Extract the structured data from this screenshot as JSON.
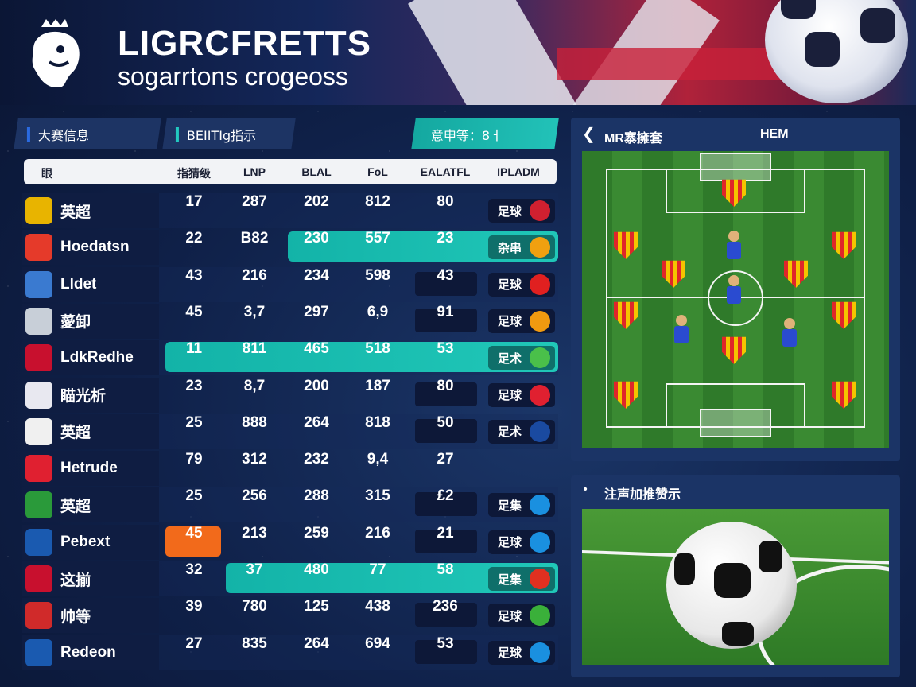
{
  "header": {
    "title": "LIGRCFRETTS",
    "subtitle": "sogarrtons crogeoss"
  },
  "tabs": [
    {
      "label": "大赛信息"
    },
    {
      "label": "BEIITIg指示"
    },
    {
      "label": "意申等：8ㅓ"
    }
  ],
  "table": {
    "columns": [
      "眼",
      "指猜级",
      "LNP",
      "BLAL",
      "FoL",
      "EALATFL",
      "IPLADM"
    ],
    "rows": [
      {
        "team": "英超",
        "crest": "#e8b400",
        "values": [
          "17",
          "287",
          "202",
          "812",
          "80"
        ],
        "badge": "足球",
        "badge_color": "#d02030",
        "highlight": "none",
        "dark_box": false
      },
      {
        "team": "Hoedatsn",
        "crest": "#e53a2a",
        "values": [
          "22",
          "B82",
          "230",
          "557",
          "23"
        ],
        "badge": "杂串",
        "badge_color": "#f0a010",
        "highlight": "from-col3",
        "dark_box": false
      },
      {
        "team": "Lldet",
        "crest": "#3a7ad0",
        "values": [
          "43",
          "216",
          "234",
          "598",
          "43"
        ],
        "badge": "足球",
        "badge_color": "#e02020",
        "highlight": "none",
        "dark_box": true
      },
      {
        "team": "薆卸",
        "crest": "#c8cfd8",
        "values": [
          "45",
          "3,7",
          "297",
          "6,9",
          "91"
        ],
        "badge": "足球",
        "badge_color": "#f09a10",
        "highlight": "none",
        "dark_box": true
      },
      {
        "team": "LdkRedhe",
        "crest": "#c8102e",
        "values": [
          "11",
          "811",
          "465",
          "518",
          "53"
        ],
        "badge": "足术",
        "badge_color": "#4ac04a",
        "highlight": "from-col1",
        "dark_box": false
      },
      {
        "team": "瞄光析",
        "crest": "#e8e8f0",
        "values": [
          "23",
          "8,7",
          "200",
          "187",
          "80"
        ],
        "badge": "足球",
        "badge_color": "#e02030",
        "highlight": "none",
        "dark_box": true
      },
      {
        "team": "英超",
        "crest": "#f0f0f0",
        "values": [
          "25",
          "888",
          "264",
          "818",
          "50"
        ],
        "badge": "足术",
        "badge_color": "#1a4aa0",
        "highlight": "none",
        "dark_box": true
      },
      {
        "team": "Hetrude",
        "crest": "#e02030",
        "values": [
          "79",
          "312",
          "232",
          "9,4",
          "27"
        ],
        "badge": "",
        "badge_color": "",
        "highlight": "none",
        "dark_box": false
      },
      {
        "team": "英超",
        "crest": "#2a9a3a",
        "values": [
          "25",
          "256",
          "288",
          "315",
          "£2"
        ],
        "badge": "足集",
        "badge_color": "#1a90e0",
        "highlight": "none",
        "dark_box": true
      },
      {
        "team": "Pebext",
        "crest": "#1a5ab0",
        "values": [
          "45",
          "213",
          "259",
          "216",
          "21"
        ],
        "badge": "足球",
        "badge_color": "#1a90e0",
        "highlight": "orange-col1",
        "dark_box": true
      },
      {
        "team": "这揃",
        "crest": "#c8102e",
        "values": [
          "32",
          "37",
          "480",
          "77",
          "58"
        ],
        "badge": "足集",
        "badge_color": "#e03020",
        "highlight": "from-col2",
        "dark_box": false
      },
      {
        "team": "帅等",
        "crest": "#d02a2a",
        "values": [
          "39",
          "780",
          "125",
          "438",
          "236"
        ],
        "badge": "足球",
        "badge_color": "#3ab03a",
        "highlight": "none",
        "dark_box": true
      },
      {
        "team": "Redeon",
        "crest": "#1a5ab0",
        "values": [
          "27",
          "835",
          "264",
          "694",
          "53"
        ],
        "badge": "足球",
        "badge_color": "#1a90e0",
        "highlight": "none",
        "dark_box": true
      }
    ]
  },
  "pitch_panel": {
    "title": "MR寨擁套",
    "right_label": "HEM"
  },
  "photo_panel": {
    "title": "注声加推赞示"
  },
  "colors": {
    "accent": "#1fbfb2",
    "highlight_orange": "#f26a1b",
    "bg": "#0f2048"
  }
}
